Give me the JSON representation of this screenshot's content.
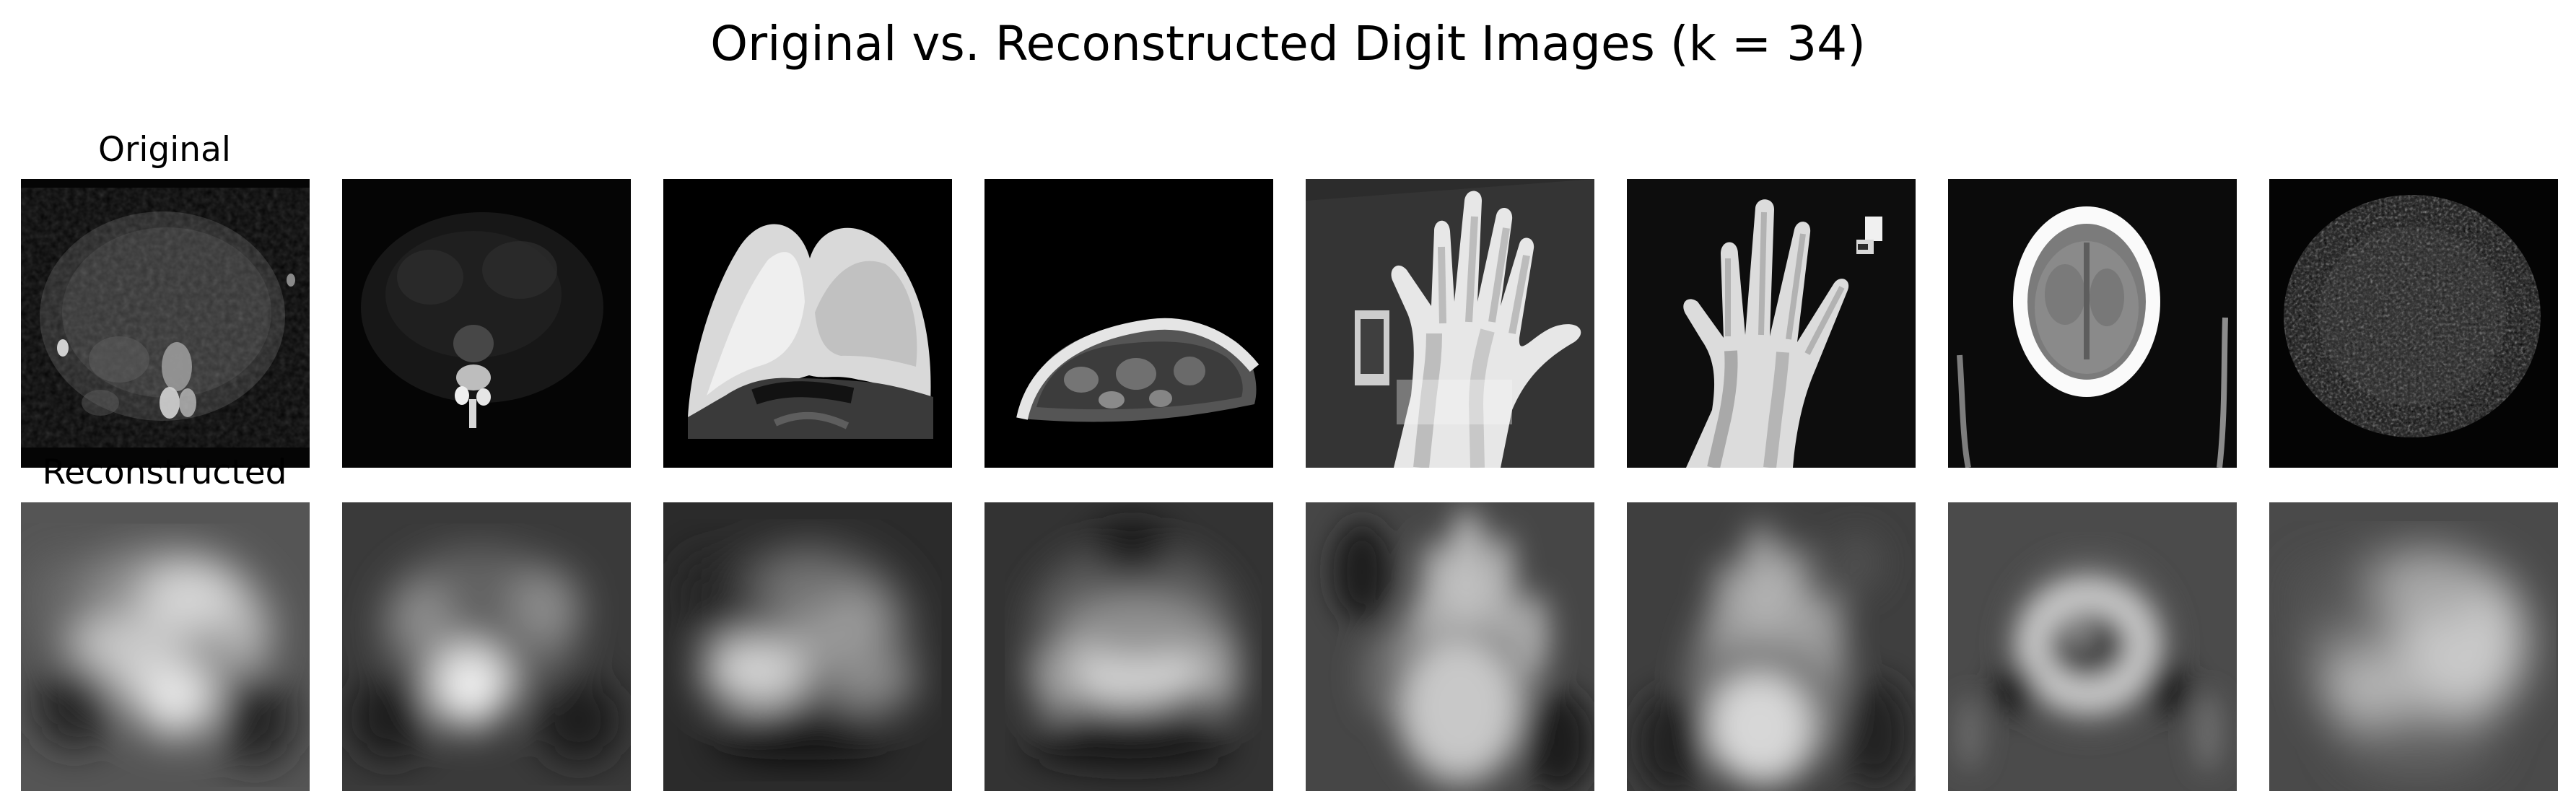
{
  "figure": {
    "title": "Original vs. Reconstructed Digit Images (k = 34)",
    "row_labels": {
      "original": "Original",
      "reconstructed": "Reconstructed"
    },
    "image_count": 8,
    "colormap": "gray"
  }
}
